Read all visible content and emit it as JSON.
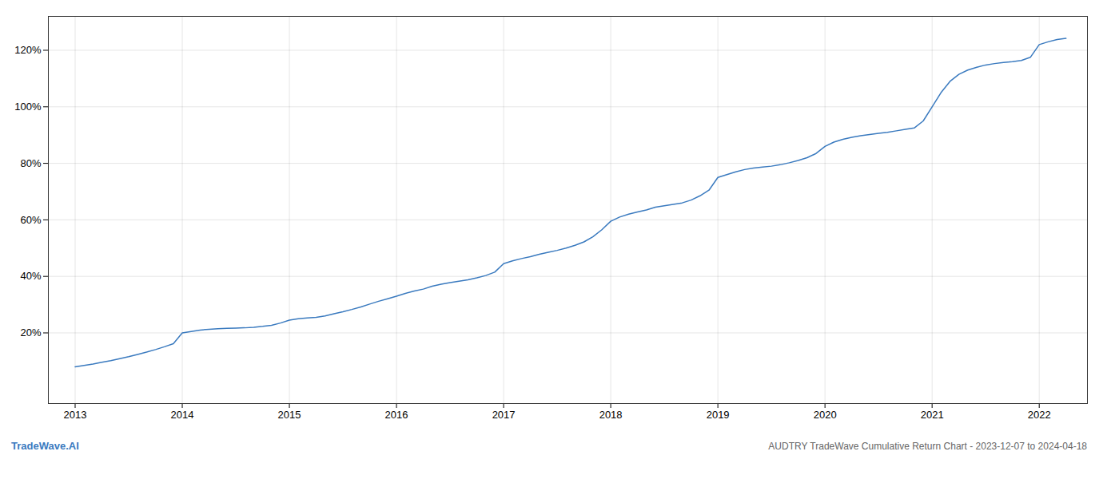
{
  "chart_data": {
    "type": "line",
    "title": "AUDTRY TradeWave Cumulative Return Chart - 2023-12-07 to 2024-04-18",
    "annotations": [
      "TradeWave.AI"
    ],
    "color": "#3a7abf",
    "grid": true,
    "x": [
      2013.0,
      2013.083,
      2013.167,
      2013.25,
      2013.333,
      2013.417,
      2013.5,
      2013.583,
      2013.667,
      2013.75,
      2013.833,
      2013.917,
      2014.0,
      2014.083,
      2014.167,
      2014.25,
      2014.333,
      2014.417,
      2014.5,
      2014.583,
      2014.667,
      2014.75,
      2014.833,
      2014.917,
      2015.0,
      2015.083,
      2015.167,
      2015.25,
      2015.333,
      2015.417,
      2015.5,
      2015.583,
      2015.667,
      2015.75,
      2015.833,
      2015.917,
      2016.0,
      2016.083,
      2016.167,
      2016.25,
      2016.333,
      2016.417,
      2016.5,
      2016.583,
      2016.667,
      2016.75,
      2016.833,
      2016.917,
      2017.0,
      2017.083,
      2017.167,
      2017.25,
      2017.333,
      2017.417,
      2017.5,
      2017.583,
      2017.667,
      2017.75,
      2017.833,
      2017.917,
      2018.0,
      2018.083,
      2018.167,
      2018.25,
      2018.333,
      2018.417,
      2018.5,
      2018.583,
      2018.667,
      2018.75,
      2018.833,
      2018.917,
      2019.0,
      2019.083,
      2019.167,
      2019.25,
      2019.333,
      2019.417,
      2019.5,
      2019.583,
      2019.667,
      2019.75,
      2019.833,
      2019.917,
      2020.0,
      2020.083,
      2020.167,
      2020.25,
      2020.333,
      2020.417,
      2020.5,
      2020.583,
      2020.667,
      2020.75,
      2020.833,
      2020.917,
      2021.0,
      2021.083,
      2021.167,
      2021.25,
      2021.333,
      2021.417,
      2021.5,
      2021.583,
      2021.667,
      2021.75,
      2021.833,
      2021.917,
      2022.0,
      2022.083,
      2022.167,
      2022.25
    ],
    "values": [
      8.0,
      8.5,
      9.0,
      9.6,
      10.2,
      10.9,
      11.6,
      12.4,
      13.2,
      14.1,
      15.1,
      16.2,
      20.0,
      20.5,
      21.0,
      21.3,
      21.5,
      21.6,
      21.7,
      21.8,
      22.0,
      22.3,
      22.7,
      23.5,
      24.5,
      25.0,
      25.3,
      25.5,
      26.0,
      26.8,
      27.5,
      28.3,
      29.2,
      30.2,
      31.2,
      32.1,
      33.0,
      34.0,
      34.8,
      35.5,
      36.5,
      37.2,
      37.8,
      38.3,
      38.8,
      39.5,
      40.3,
      41.5,
      44.5,
      45.5,
      46.3,
      47.0,
      47.8,
      48.5,
      49.2,
      50.0,
      51.0,
      52.2,
      54.0,
      56.5,
      59.5,
      61.0,
      62.0,
      62.8,
      63.5,
      64.5,
      65.0,
      65.5,
      66.0,
      67.0,
      68.5,
      70.5,
      75.0,
      76.0,
      77.0,
      77.8,
      78.3,
      78.7,
      79.0,
      79.5,
      80.2,
      81.0,
      82.0,
      83.5,
      86.0,
      87.5,
      88.5,
      89.2,
      89.8,
      90.2,
      90.6,
      91.0,
      91.5,
      92.0,
      92.5,
      95.0,
      100.0,
      105.0,
      109.0,
      111.5,
      113.0,
      114.0,
      114.8,
      115.3,
      115.7,
      116.0,
      116.4,
      117.5,
      122.0,
      123.0,
      123.8,
      124.2
    ],
    "xlim": [
      2012.75,
      2022.45
    ],
    "xticks": [
      2013,
      2014,
      2015,
      2016,
      2017,
      2018,
      2019,
      2020,
      2021,
      2022
    ],
    "ylim": [
      -5,
      132
    ],
    "yticks": [
      {
        "value": 20,
        "label": "20%"
      },
      {
        "value": 40,
        "label": "40%"
      },
      {
        "value": 60,
        "label": "60%"
      },
      {
        "value": 80,
        "label": "80%"
      },
      {
        "value": 100,
        "label": "100%"
      },
      {
        "value": 120,
        "label": "120%"
      }
    ]
  }
}
